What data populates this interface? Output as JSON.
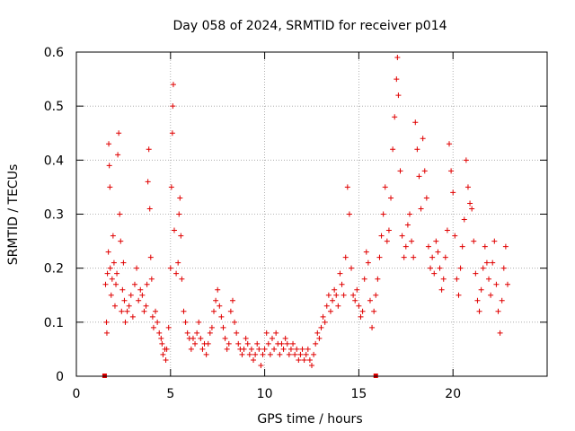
{
  "chart_data": {
    "type": "scatter",
    "title": "Day 058 of 2024, SRMTID for receiver p014",
    "xlabel": "GPS time / hours",
    "ylabel": "SRMTID / TECUs",
    "xlim": [
      0,
      25
    ],
    "ylim": [
      0,
      0.6
    ],
    "grid": true,
    "marker": "+",
    "marker_color": "#e00000",
    "x_ticks": [
      0,
      5,
      10,
      15,
      20
    ],
    "x_tick_labels": [
      "0",
      "5",
      "10",
      "15",
      "20"
    ],
    "y_ticks": [
      0,
      0.1,
      0.2,
      0.3,
      0.4,
      0.5,
      0.6
    ],
    "y_tick_labels": [
      "0",
      "0.1",
      "0.2",
      "0.3",
      "0.4",
      "0.5",
      "0.6"
    ],
    "gap_markers": [
      1.5,
      15.9
    ],
    "series": [
      {
        "name": "SRMTID",
        "points": [
          [
            1.55,
            0.17
          ],
          [
            1.6,
            0.1
          ],
          [
            1.62,
            0.08
          ],
          [
            1.65,
            0.19
          ],
          [
            1.7,
            0.23
          ],
          [
            1.72,
            0.43
          ],
          [
            1.75,
            0.39
          ],
          [
            1.78,
            0.35
          ],
          [
            1.8,
            0.2
          ],
          [
            1.85,
            0.15
          ],
          [
            1.9,
            0.18
          ],
          [
            1.95,
            0.26
          ],
          [
            2.0,
            0.21
          ],
          [
            2.05,
            0.13
          ],
          [
            2.1,
            0.17
          ],
          [
            2.15,
            0.19
          ],
          [
            2.2,
            0.41
          ],
          [
            2.25,
            0.45
          ],
          [
            2.3,
            0.3
          ],
          [
            2.35,
            0.25
          ],
          [
            2.4,
            0.12
          ],
          [
            2.45,
            0.16
          ],
          [
            2.5,
            0.21
          ],
          [
            2.55,
            0.14
          ],
          [
            2.6,
            0.1
          ],
          [
            2.7,
            0.12
          ],
          [
            2.8,
            0.13
          ],
          [
            2.9,
            0.15
          ],
          [
            3.0,
            0.11
          ],
          [
            3.1,
            0.17
          ],
          [
            3.2,
            0.2
          ],
          [
            3.3,
            0.14
          ],
          [
            3.4,
            0.16
          ],
          [
            3.5,
            0.15
          ],
          [
            3.6,
            0.12
          ],
          [
            3.7,
            0.13
          ],
          [
            3.75,
            0.17
          ],
          [
            3.8,
            0.36
          ],
          [
            3.85,
            0.42
          ],
          [
            3.9,
            0.31
          ],
          [
            3.95,
            0.22
          ],
          [
            4.0,
            0.18
          ],
          [
            4.05,
            0.11
          ],
          [
            4.1,
            0.09
          ],
          [
            4.2,
            0.12
          ],
          [
            4.3,
            0.1
          ],
          [
            4.4,
            0.08
          ],
          [
            4.5,
            0.07
          ],
          [
            4.55,
            0.06
          ],
          [
            4.6,
            0.04
          ],
          [
            4.7,
            0.05
          ],
          [
            4.75,
            0.03
          ],
          [
            4.8,
            0.05
          ],
          [
            4.9,
            0.09
          ],
          [
            5.0,
            0.2
          ],
          [
            5.05,
            0.35
          ],
          [
            5.1,
            0.45
          ],
          [
            5.12,
            0.5
          ],
          [
            5.15,
            0.54
          ],
          [
            5.2,
            0.27
          ],
          [
            5.3,
            0.19
          ],
          [
            5.4,
            0.21
          ],
          [
            5.45,
            0.3
          ],
          [
            5.5,
            0.33
          ],
          [
            5.55,
            0.26
          ],
          [
            5.6,
            0.18
          ],
          [
            5.7,
            0.12
          ],
          [
            5.8,
            0.1
          ],
          [
            5.9,
            0.08
          ],
          [
            6.0,
            0.07
          ],
          [
            6.1,
            0.05
          ],
          [
            6.2,
            0.07
          ],
          [
            6.3,
            0.06
          ],
          [
            6.4,
            0.08
          ],
          [
            6.5,
            0.1
          ],
          [
            6.6,
            0.07
          ],
          [
            6.7,
            0.05
          ],
          [
            6.8,
            0.06
          ],
          [
            6.9,
            0.04
          ],
          [
            7.0,
            0.06
          ],
          [
            7.1,
            0.08
          ],
          [
            7.2,
            0.09
          ],
          [
            7.3,
            0.12
          ],
          [
            7.4,
            0.14
          ],
          [
            7.5,
            0.16
          ],
          [
            7.6,
            0.13
          ],
          [
            7.7,
            0.11
          ],
          [
            7.8,
            0.09
          ],
          [
            7.9,
            0.07
          ],
          [
            8.0,
            0.05
          ],
          [
            8.1,
            0.06
          ],
          [
            8.2,
            0.12
          ],
          [
            8.3,
            0.14
          ],
          [
            8.4,
            0.1
          ],
          [
            8.5,
            0.08
          ],
          [
            8.6,
            0.06
          ],
          [
            8.7,
            0.05
          ],
          [
            8.8,
            0.04
          ],
          [
            8.9,
            0.05
          ],
          [
            9.0,
            0.07
          ],
          [
            9.1,
            0.06
          ],
          [
            9.2,
            0.04
          ],
          [
            9.3,
            0.05
          ],
          [
            9.4,
            0.03
          ],
          [
            9.5,
            0.04
          ],
          [
            9.6,
            0.06
          ],
          [
            9.7,
            0.05
          ],
          [
            9.8,
            0.02
          ],
          [
            9.9,
            0.04
          ],
          [
            10.0,
            0.05
          ],
          [
            10.1,
            0.08
          ],
          [
            10.2,
            0.06
          ],
          [
            10.3,
            0.04
          ],
          [
            10.4,
            0.07
          ],
          [
            10.5,
            0.05
          ],
          [
            10.6,
            0.08
          ],
          [
            10.7,
            0.06
          ],
          [
            10.8,
            0.04
          ],
          [
            10.9,
            0.06
          ],
          [
            11.0,
            0.05
          ],
          [
            11.1,
            0.07
          ],
          [
            11.2,
            0.06
          ],
          [
            11.3,
            0.04
          ],
          [
            11.4,
            0.05
          ],
          [
            11.5,
            0.06
          ],
          [
            11.6,
            0.04
          ],
          [
            11.7,
            0.05
          ],
          [
            11.8,
            0.03
          ],
          [
            11.9,
            0.04
          ],
          [
            12.0,
            0.05
          ],
          [
            12.1,
            0.03
          ],
          [
            12.2,
            0.04
          ],
          [
            12.3,
            0.05
          ],
          [
            12.4,
            0.03
          ],
          [
            12.5,
            0.02
          ],
          [
            12.6,
            0.04
          ],
          [
            12.7,
            0.06
          ],
          [
            12.8,
            0.08
          ],
          [
            12.9,
            0.07
          ],
          [
            13.0,
            0.09
          ],
          [
            13.1,
            0.11
          ],
          [
            13.2,
            0.1
          ],
          [
            13.3,
            0.13
          ],
          [
            13.4,
            0.15
          ],
          [
            13.5,
            0.12
          ],
          [
            13.6,
            0.14
          ],
          [
            13.7,
            0.16
          ],
          [
            13.8,
            0.15
          ],
          [
            13.9,
            0.13
          ],
          [
            14.0,
            0.19
          ],
          [
            14.1,
            0.17
          ],
          [
            14.2,
            0.15
          ],
          [
            14.3,
            0.22
          ],
          [
            14.4,
            0.35
          ],
          [
            14.5,
            0.3
          ],
          [
            14.6,
            0.2
          ],
          [
            14.7,
            0.15
          ],
          [
            14.8,
            0.14
          ],
          [
            14.9,
            0.16
          ],
          [
            15.0,
            0.13
          ],
          [
            15.1,
            0.11
          ],
          [
            15.2,
            0.12
          ],
          [
            15.3,
            0.18
          ],
          [
            15.4,
            0.23
          ],
          [
            15.5,
            0.21
          ],
          [
            15.6,
            0.14
          ],
          [
            15.7,
            0.09
          ],
          [
            15.8,
            0.12
          ],
          [
            15.9,
            0.15
          ],
          [
            16.0,
            0.18
          ],
          [
            16.1,
            0.22
          ],
          [
            16.2,
            0.26
          ],
          [
            16.3,
            0.3
          ],
          [
            16.4,
            0.35
          ],
          [
            16.5,
            0.25
          ],
          [
            16.6,
            0.27
          ],
          [
            16.7,
            0.33
          ],
          [
            16.8,
            0.42
          ],
          [
            16.9,
            0.48
          ],
          [
            17.0,
            0.55
          ],
          [
            17.05,
            0.59
          ],
          [
            17.1,
            0.52
          ],
          [
            17.2,
            0.38
          ],
          [
            17.3,
            0.26
          ],
          [
            17.4,
            0.22
          ],
          [
            17.5,
            0.24
          ],
          [
            17.6,
            0.28
          ],
          [
            17.7,
            0.3
          ],
          [
            17.8,
            0.25
          ],
          [
            17.9,
            0.22
          ],
          [
            18.0,
            0.47
          ],
          [
            18.1,
            0.42
          ],
          [
            18.2,
            0.37
          ],
          [
            18.3,
            0.31
          ],
          [
            18.4,
            0.44
          ],
          [
            18.5,
            0.38
          ],
          [
            18.6,
            0.33
          ],
          [
            18.7,
            0.24
          ],
          [
            18.8,
            0.2
          ],
          [
            18.9,
            0.22
          ],
          [
            19.0,
            0.19
          ],
          [
            19.1,
            0.25
          ],
          [
            19.2,
            0.23
          ],
          [
            19.3,
            0.2
          ],
          [
            19.4,
            0.16
          ],
          [
            19.5,
            0.18
          ],
          [
            19.6,
            0.22
          ],
          [
            19.7,
            0.27
          ],
          [
            19.8,
            0.43
          ],
          [
            19.9,
            0.38
          ],
          [
            20.0,
            0.34
          ],
          [
            20.1,
            0.26
          ],
          [
            20.2,
            0.18
          ],
          [
            20.3,
            0.15
          ],
          [
            20.4,
            0.2
          ],
          [
            20.5,
            0.24
          ],
          [
            20.6,
            0.29
          ],
          [
            20.7,
            0.4
          ],
          [
            20.8,
            0.35
          ],
          [
            20.9,
            0.32
          ],
          [
            21.0,
            0.31
          ],
          [
            21.1,
            0.25
          ],
          [
            21.2,
            0.19
          ],
          [
            21.3,
            0.14
          ],
          [
            21.4,
            0.12
          ],
          [
            21.5,
            0.16
          ],
          [
            21.6,
            0.2
          ],
          [
            21.7,
            0.24
          ],
          [
            21.8,
            0.21
          ],
          [
            21.9,
            0.18
          ],
          [
            22.0,
            0.15
          ],
          [
            22.1,
            0.21
          ],
          [
            22.2,
            0.25
          ],
          [
            22.3,
            0.17
          ],
          [
            22.4,
            0.12
          ],
          [
            22.5,
            0.08
          ],
          [
            22.6,
            0.14
          ],
          [
            22.7,
            0.2
          ],
          [
            22.8,
            0.24
          ],
          [
            22.9,
            0.17
          ]
        ]
      }
    ]
  }
}
